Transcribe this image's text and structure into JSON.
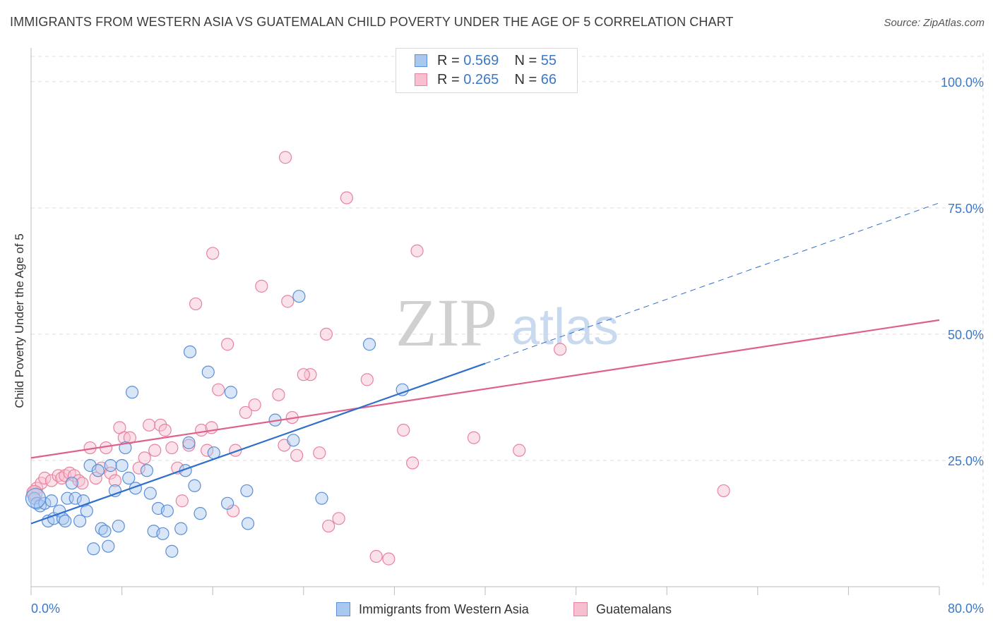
{
  "title": "IMMIGRANTS FROM WESTERN ASIA VS GUATEMALAN CHILD POVERTY UNDER THE AGE OF 5 CORRELATION CHART",
  "source": "Source: ZipAtlas.com",
  "watermark": {
    "zip": "ZIP",
    "atlas": "atlas"
  },
  "legend": {
    "r_label": "R =",
    "n_label": "N =",
    "entries": [
      {
        "r": "0.569",
        "n": "55"
      },
      {
        "r": "0.265",
        "n": "66"
      }
    ]
  },
  "colors": {
    "blue_fill": "#a9c8f0",
    "blue_stroke": "#5b8fd6",
    "blue_line": "#2f6fcc",
    "pink_fill": "#f7bfd0",
    "pink_stroke": "#e7839f",
    "pink_line": "#e0608c",
    "grid": "#dddddd",
    "tick_label": "#3c78c8"
  },
  "chart_data": {
    "type": "scatter",
    "title": "IMMIGRANTS FROM WESTERN ASIA VS GUATEMALAN CHILD POVERTY UNDER THE AGE OF 5 CORRELATION CHART",
    "xlabel": "",
    "ylabel": "Child Poverty Under the Age of 5",
    "xlim": [
      0,
      80
    ],
    "ylim": [
      0,
      105
    ],
    "x_tick_labels": [
      "0.0%",
      "80.0%"
    ],
    "y_ticks": [
      25,
      50,
      75,
      100
    ],
    "y_tick_labels": [
      "25.0%",
      "50.0%",
      "75.0%",
      "100.0%"
    ],
    "grid": true,
    "series": [
      {
        "name": "Immigrants from Western Asia",
        "r": 0.569,
        "n": 55,
        "trend": {
          "x0": 0,
          "y0": 12.5,
          "x1": 40,
          "y1": 44.2,
          "dash_to_x": 80,
          "dash_to_y": 76
        },
        "points": [
          [
            0.3,
            17.5
          ],
          [
            0.5,
            16.5
          ],
          [
            0.8,
            16.0
          ],
          [
            1.2,
            16.5
          ],
          [
            1.5,
            13.0
          ],
          [
            1.8,
            17.0
          ],
          [
            2.0,
            13.5
          ],
          [
            2.5,
            15.0
          ],
          [
            2.8,
            13.5
          ],
          [
            3.0,
            13.0
          ],
          [
            3.2,
            17.5
          ],
          [
            3.6,
            20.5
          ],
          [
            3.9,
            17.5
          ],
          [
            4.3,
            13.0
          ],
          [
            4.6,
            17.0
          ],
          [
            4.9,
            15.0
          ],
          [
            5.2,
            24.0
          ],
          [
            5.5,
            7.5
          ],
          [
            5.9,
            23.0
          ],
          [
            6.2,
            11.5
          ],
          [
            6.5,
            11.0
          ],
          [
            6.8,
            8.0
          ],
          [
            7.0,
            24.0
          ],
          [
            7.4,
            19.0
          ],
          [
            7.7,
            12.0
          ],
          [
            8.0,
            24.0
          ],
          [
            8.3,
            27.5
          ],
          [
            8.6,
            21.5
          ],
          [
            8.9,
            38.5
          ],
          [
            9.2,
            19.5
          ],
          [
            10.2,
            23.0
          ],
          [
            10.5,
            18.5
          ],
          [
            10.8,
            11.0
          ],
          [
            11.2,
            15.5
          ],
          [
            11.6,
            10.5
          ],
          [
            12.0,
            15.0
          ],
          [
            12.4,
            7.0
          ],
          [
            13.2,
            11.5
          ],
          [
            13.6,
            23.0
          ],
          [
            14.0,
            46.5
          ],
          [
            14.4,
            20.0
          ],
          [
            14.9,
            14.5
          ],
          [
            15.6,
            42.5
          ],
          [
            16.1,
            26.5
          ],
          [
            17.3,
            16.5
          ],
          [
            17.6,
            38.5
          ],
          [
            19.0,
            19.0
          ],
          [
            19.1,
            12.5
          ],
          [
            21.5,
            33.0
          ],
          [
            23.1,
            29.0
          ],
          [
            23.6,
            57.5
          ],
          [
            25.6,
            17.5
          ],
          [
            29.8,
            48.0
          ],
          [
            32.7,
            39.0
          ],
          [
            13.9,
            28.5
          ]
        ]
      },
      {
        "name": "Guatemalans",
        "r": 0.265,
        "n": 66,
        "trend": {
          "x0": 0,
          "y0": 25.5,
          "x1": 80,
          "y1": 52.8
        },
        "points": [
          [
            0.2,
            18.5
          ],
          [
            0.5,
            19.5
          ],
          [
            0.9,
            20.5
          ],
          [
            1.2,
            21.5
          ],
          [
            1.8,
            21.0
          ],
          [
            2.4,
            22.0
          ],
          [
            2.7,
            21.5
          ],
          [
            3.0,
            22.0
          ],
          [
            3.4,
            22.5
          ],
          [
            3.8,
            22.0
          ],
          [
            4.2,
            21.0
          ],
          [
            4.5,
            20.5
          ],
          [
            5.2,
            27.5
          ],
          [
            5.7,
            21.5
          ],
          [
            6.2,
            23.5
          ],
          [
            6.6,
            27.5
          ],
          [
            7.0,
            22.5
          ],
          [
            7.4,
            21.0
          ],
          [
            7.8,
            31.5
          ],
          [
            8.2,
            29.5
          ],
          [
            8.7,
            29.5
          ],
          [
            9.5,
            23.5
          ],
          [
            10.0,
            25.5
          ],
          [
            10.4,
            32.0
          ],
          [
            10.9,
            27.0
          ],
          [
            11.4,
            32.0
          ],
          [
            11.8,
            31.0
          ],
          [
            12.4,
            27.5
          ],
          [
            12.9,
            23.5
          ],
          [
            13.3,
            17.0
          ],
          [
            13.9,
            28.0
          ],
          [
            14.5,
            56.0
          ],
          [
            15.0,
            31.0
          ],
          [
            15.5,
            27.0
          ],
          [
            15.9,
            31.5
          ],
          [
            16.5,
            39.0
          ],
          [
            17.3,
            48.0
          ],
          [
            17.8,
            15.0
          ],
          [
            18.0,
            27.0
          ],
          [
            18.9,
            34.5
          ],
          [
            19.7,
            36.0
          ],
          [
            20.3,
            59.5
          ],
          [
            21.8,
            38.0
          ],
          [
            22.3,
            28.0
          ],
          [
            22.6,
            56.5
          ],
          [
            23.0,
            33.5
          ],
          [
            23.4,
            26.0
          ],
          [
            24.6,
            42.0
          ],
          [
            25.4,
            26.5
          ],
          [
            26.0,
            50.0
          ],
          [
            27.1,
            13.5
          ],
          [
            27.8,
            77.0
          ],
          [
            29.6,
            41.0
          ],
          [
            30.4,
            6.0
          ],
          [
            31.5,
            5.5
          ],
          [
            32.8,
            31.0
          ],
          [
            33.6,
            24.5
          ],
          [
            34.0,
            66.5
          ],
          [
            39.0,
            29.5
          ],
          [
            43.0,
            27.0
          ],
          [
            46.6,
            47.0
          ],
          [
            61.0,
            19.0
          ],
          [
            16.0,
            66.0
          ],
          [
            22.4,
            85.0
          ],
          [
            24.0,
            42.0
          ],
          [
            26.2,
            12.0
          ]
        ]
      }
    ]
  },
  "bottom_legend": [
    "Immigrants from Western Asia",
    "Guatemalans"
  ]
}
